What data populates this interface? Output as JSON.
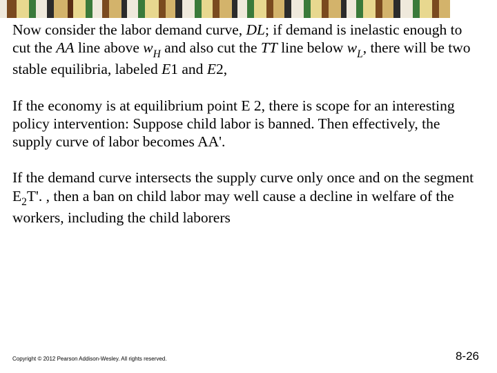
{
  "border": {
    "segments": [
      {
        "w": 10,
        "c": "#efe9dc"
      },
      {
        "w": 14,
        "c": "#7a4a1f"
      },
      {
        "w": 18,
        "c": "#e8d88f"
      },
      {
        "w": 10,
        "c": "#3a7a3a"
      },
      {
        "w": 16,
        "c": "#efe9dc"
      },
      {
        "w": 10,
        "c": "#2b2b2b"
      },
      {
        "w": 20,
        "c": "#d3b36b"
      },
      {
        "w": 8,
        "c": "#5a2f14"
      },
      {
        "w": 18,
        "c": "#e8d88f"
      },
      {
        "w": 10,
        "c": "#3a7a3a"
      },
      {
        "w": 14,
        "c": "#efe9dc"
      },
      {
        "w": 10,
        "c": "#7a4a1f"
      },
      {
        "w": 18,
        "c": "#d3b36b"
      },
      {
        "w": 8,
        "c": "#2b2b2b"
      },
      {
        "w": 16,
        "c": "#efe9dc"
      },
      {
        "w": 10,
        "c": "#3a7a3a"
      },
      {
        "w": 20,
        "c": "#e8d88f"
      },
      {
        "w": 10,
        "c": "#7a4a1f"
      },
      {
        "w": 14,
        "c": "#d3b36b"
      },
      {
        "w": 10,
        "c": "#2b2b2b"
      },
      {
        "w": 18,
        "c": "#efe9dc"
      },
      {
        "w": 10,
        "c": "#3a7a3a"
      },
      {
        "w": 16,
        "c": "#e8d88f"
      },
      {
        "w": 10,
        "c": "#7a4a1f"
      },
      {
        "w": 18,
        "c": "#d3b36b"
      },
      {
        "w": 8,
        "c": "#2b2b2b"
      },
      {
        "w": 14,
        "c": "#efe9dc"
      },
      {
        "w": 10,
        "c": "#3a7a3a"
      },
      {
        "w": 18,
        "c": "#e8d88f"
      },
      {
        "w": 10,
        "c": "#7a4a1f"
      },
      {
        "w": 16,
        "c": "#d3b36b"
      },
      {
        "w": 10,
        "c": "#2b2b2b"
      },
      {
        "w": 18,
        "c": "#efe9dc"
      },
      {
        "w": 10,
        "c": "#3a7a3a"
      },
      {
        "w": 16,
        "c": "#e8d88f"
      },
      {
        "w": 10,
        "c": "#7a4a1f"
      },
      {
        "w": 18,
        "c": "#d3b36b"
      },
      {
        "w": 8,
        "c": "#2b2b2b"
      },
      {
        "w": 14,
        "c": "#efe9dc"
      },
      {
        "w": 10,
        "c": "#3a7a3a"
      },
      {
        "w": 18,
        "c": "#e8d88f"
      },
      {
        "w": 10,
        "c": "#7a4a1f"
      },
      {
        "w": 16,
        "c": "#d3b36b"
      },
      {
        "w": 10,
        "c": "#2b2b2b"
      },
      {
        "w": 18,
        "c": "#efe9dc"
      },
      {
        "w": 10,
        "c": "#3a7a3a"
      },
      {
        "w": 18,
        "c": "#e8d88f"
      },
      {
        "w": 10,
        "c": "#7a4a1f"
      },
      {
        "w": 16,
        "c": "#d3b36b"
      }
    ]
  },
  "paragraphs": {
    "p1_a": "Now consider the labor demand curve, ",
    "p1_dl": "DL",
    "p1_b": "; if demand is inelastic enough to cut the ",
    "p1_aa": "AA",
    "p1_c": " line above ",
    "p1_w": "w",
    "p1_h": "H",
    "p1_d": " and also cut the ",
    "p1_tt": "TT",
    "p1_e": " line below ",
    "p1_w2": "w",
    "p1_l": "L",
    "p1_f": ", there will be two stable equilibria, labeled ",
    "p1_e1": "E",
    "p1_g": "1 and ",
    "p1_e2": "E",
    "p1_i": "2,",
    "p2": "If the economy is at equilibrium point E 2, there is scope for an interesting policy intervention: Suppose child labor is banned. Then effectively, the supply curve of labor becomes AA'.",
    "p3_a": "If the demand curve intersects the supply curve only once and on the segment E",
    "p3_sub2": "2",
    "p3_b": "T'. , then a ban on child labor may well cause a decline in welfare of the workers, including the child laborers"
  },
  "copyright": "Copyright © 2012 Pearson Addison-Wesley. All rights reserved.",
  "pageNumber": "8-26"
}
